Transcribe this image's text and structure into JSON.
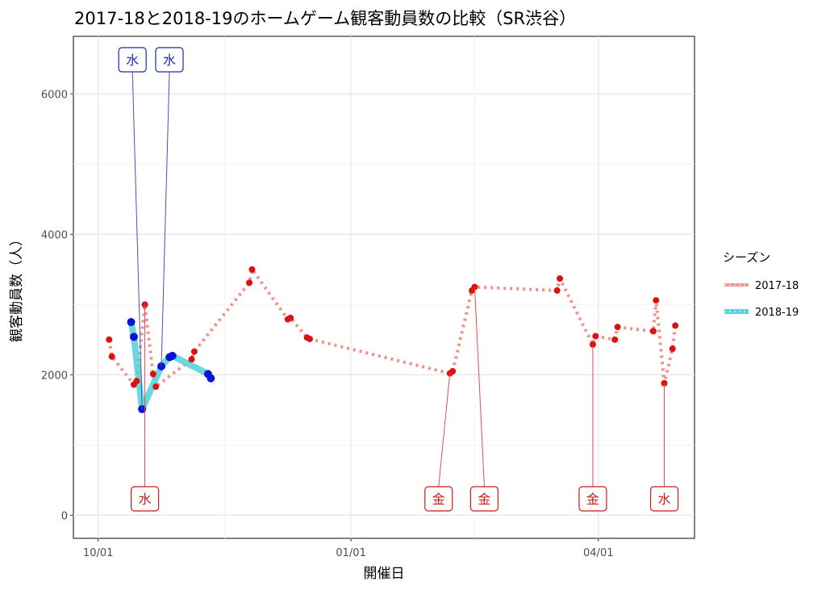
{
  "chart_data": {
    "type": "line",
    "title": "2017-18と2018-19のホームゲーム観客動員数の比較（SR渋谷）",
    "xlabel": "開催日",
    "ylabel": "観客動員数（人）",
    "x_axis": {
      "type": "date",
      "ticks": [
        "10/01",
        "01/01",
        "04/01"
      ],
      "range": [
        "09/22",
        "05/06"
      ]
    },
    "y_axis": {
      "ticks": [
        "0",
        "2000",
        "4000",
        "6000"
      ],
      "range": [
        -330,
        6820
      ]
    },
    "grid": true,
    "legend": {
      "title": "シーズン",
      "position": "right",
      "entries": [
        {
          "label": "2017-18",
          "color": "#f08a84"
        },
        {
          "label": "2018-19",
          "color": "#45cfd6"
        }
      ]
    },
    "series": [
      {
        "name": "2017-18",
        "color": "#f08a84",
        "point_color": "#dd1111",
        "line_style": "dotted",
        "points": [
          {
            "x": "10/05",
            "y": 2500
          },
          {
            "x": "10/06",
            "y": 2260
          },
          {
            "x": "10/14",
            "y": 1860
          },
          {
            "x": "10/15",
            "y": 1910
          },
          {
            "x": "10/18",
            "y": 3000
          },
          {
            "x": "10/21",
            "y": 2010
          },
          {
            "x": "10/22",
            "y": 1830
          },
          {
            "x": "11/04",
            "y": 2220
          },
          {
            "x": "11/05",
            "y": 2330
          },
          {
            "x": "11/25",
            "y": 3310
          },
          {
            "x": "11/26",
            "y": 3500
          },
          {
            "x": "12/09",
            "y": 2790
          },
          {
            "x": "12/10",
            "y": 2810
          },
          {
            "x": "12/16",
            "y": 2530
          },
          {
            "x": "12/17",
            "y": 2510
          },
          {
            "x": "02/06",
            "y": 2020
          },
          {
            "x": "02/07",
            "y": 2050
          },
          {
            "x": "02/14",
            "y": 3200
          },
          {
            "x": "02/15",
            "y": 3250
          },
          {
            "x": "03/17",
            "y": 3200
          },
          {
            "x": "03/18",
            "y": 3370
          },
          {
            "x": "03/30",
            "y": 2430
          },
          {
            "x": "03/31",
            "y": 2550
          },
          {
            "x": "04/07",
            "y": 2500
          },
          {
            "x": "04/08",
            "y": 2680
          },
          {
            "x": "04/21",
            "y": 2620
          },
          {
            "x": "04/22",
            "y": 3060
          },
          {
            "x": "04/25",
            "y": 1880
          },
          {
            "x": "04/28",
            "y": 2370
          },
          {
            "x": "04/29",
            "y": 2700
          }
        ]
      },
      {
        "name": "2018-19",
        "color": "#45cfd6",
        "point_color": "#0a14d8",
        "line_style": "solid",
        "points": [
          {
            "x": "10/13",
            "y": 2750
          },
          {
            "x": "10/14",
            "y": 2540
          },
          {
            "x": "10/17",
            "y": 1510
          },
          {
            "x": "10/24",
            "y": 2120
          },
          {
            "x": "10/27",
            "y": 2250
          },
          {
            "x": "10/28",
            "y": 2270
          },
          {
            "x": "11/10",
            "y": 2010
          },
          {
            "x": "11/11",
            "y": 1950
          }
        ]
      }
    ],
    "annotations": [
      {
        "label": "水",
        "season": "2018-19",
        "point_x": "10/17",
        "point_y": 1510,
        "position": "top"
      },
      {
        "label": "水",
        "season": "2018-19",
        "point_x": "10/24",
        "point_y": 2120,
        "position": "top"
      },
      {
        "label": "水",
        "season": "2017-18",
        "point_x": "10/18",
        "point_y": 3000,
        "position": "bottom"
      },
      {
        "label": "金",
        "season": "2017-18",
        "point_x": "02/06",
        "point_y": 2020,
        "position": "bottom"
      },
      {
        "label": "金",
        "season": "2017-18",
        "point_x": "02/15",
        "point_y": 3250,
        "position": "bottom"
      },
      {
        "label": "金",
        "season": "2017-18",
        "point_x": "03/30",
        "point_y": 2430,
        "position": "bottom"
      },
      {
        "label": "水",
        "season": "2017-18",
        "point_x": "04/25",
        "point_y": 1880,
        "position": "bottom"
      }
    ]
  }
}
